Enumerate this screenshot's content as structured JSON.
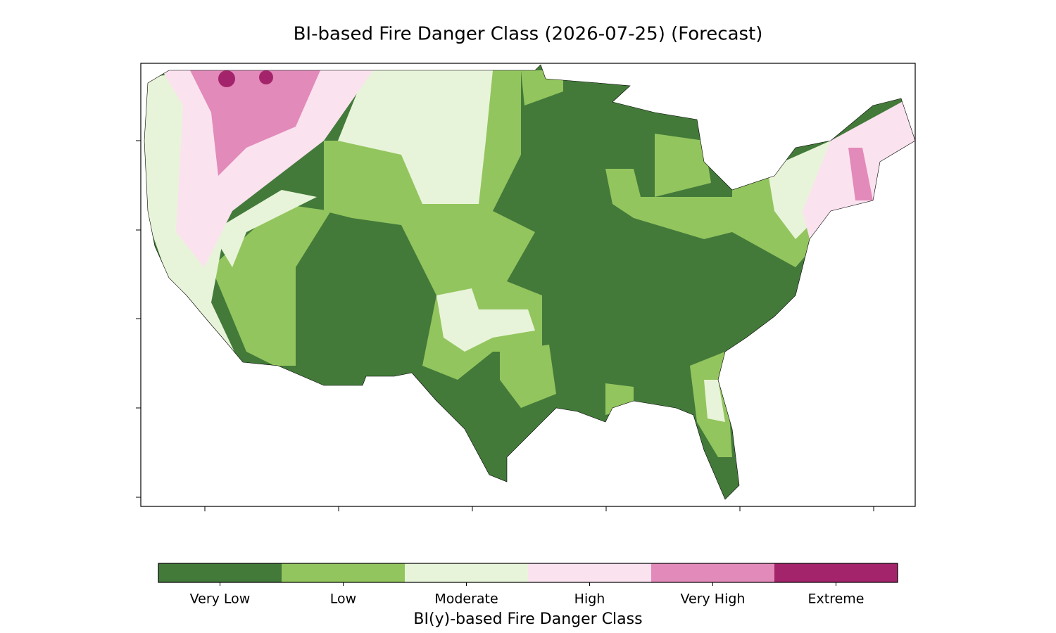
{
  "title": "BI-based Fire Danger Class (2026-07-25) (Forecast)",
  "colorbar": {
    "label": "BI(y)-based Fire Danger Class",
    "classes": [
      {
        "name": "Very Low",
        "color": "#437a3a"
      },
      {
        "name": "Low",
        "color": "#93c55e"
      },
      {
        "name": "Moderate",
        "color": "#e8f4d9"
      },
      {
        "name": "High",
        "color": "#fbe2ef"
      },
      {
        "name": "Very High",
        "color": "#e28ab9"
      },
      {
        "name": "Extreme",
        "color": "#a3246b"
      }
    ]
  }
}
